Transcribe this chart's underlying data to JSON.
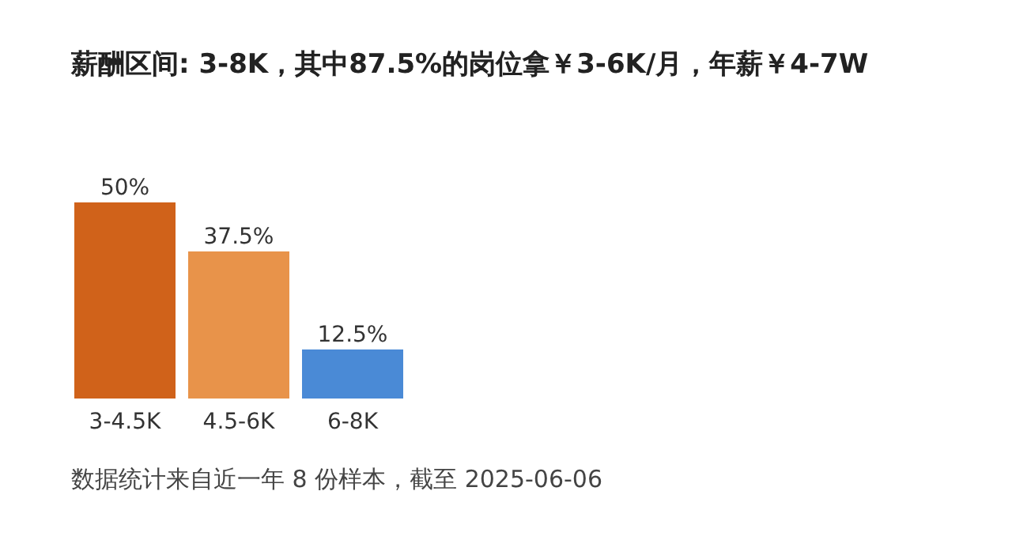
{
  "chart_data": {
    "type": "bar",
    "title": "薪酬区间: 3-8K，其中87.5%的岗位拿￥3-6K/月，年薪￥4-7W",
    "categories": [
      "3-4.5K",
      "4.5-6K",
      "6-8K"
    ],
    "values": [
      50,
      37.5,
      12.5
    ],
    "value_labels": [
      "50%",
      "37.5%",
      "12.5%"
    ],
    "colors": [
      "#d0621a",
      "#e8934a",
      "#4a8ad6"
    ],
    "annotations": [
      "数据统计来自近一年 8 份样本，截至 2025-06-06"
    ]
  }
}
